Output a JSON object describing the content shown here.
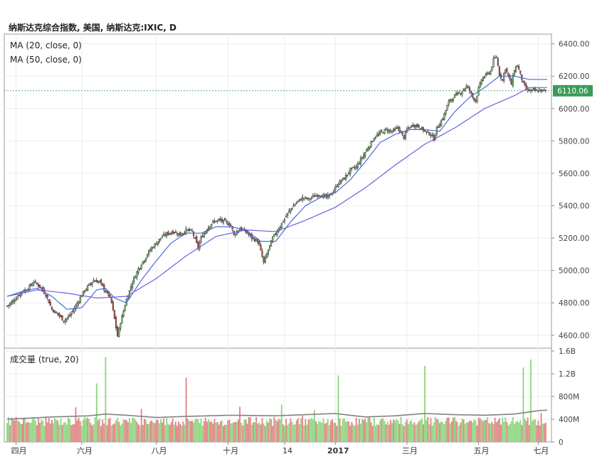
{
  "title": "纳斯达克综合指数, 美国, 纳斯达克:IXIC, D",
  "price_pane": {
    "ma20_label": "MA (20, close, 0)",
    "ma50_label": "MA (50, close, 0)",
    "last_price_label": "6110.06",
    "last_price": 6110.06
  },
  "volume_pane": {
    "label": "成交量 (true, 20)"
  },
  "colors": {
    "up": "#7cc96c",
    "down": "#c85151",
    "up_volume": "#8fd67f",
    "down_volume": "#e08585",
    "ma20": "#4a6bd8",
    "ma50": "#6d5de0",
    "volume_ma": "#808080",
    "last_price_line": "#2e8b57",
    "grid": "#ececec"
  },
  "chart_data": [
    {
      "type": "candlestick",
      "title": "纳斯达克综合指数, 美国, 纳斯达克:IXIC, D",
      "timeframe": "D",
      "x_tick_labels": [
        "四月",
        "六月",
        "八月",
        "十月",
        "14",
        "2017",
        "三月",
        "五月",
        "七月"
      ],
      "y_tick_labels": [
        "4600.00",
        "4800.00",
        "5000.00",
        "5200.00",
        "5400.00",
        "5600.00",
        "5800.00",
        "6000.00",
        "6200.00",
        "6400.00"
      ],
      "ylim": [
        4520,
        6460
      ],
      "grid": true,
      "series_names": [
        "MA (20, close, 0)",
        "MA (50, close, 0)"
      ],
      "last_value": 6110.06,
      "close_path": [
        [
          0,
          4780
        ],
        [
          6,
          4830
        ],
        [
          10,
          4870
        ],
        [
          14,
          4890
        ],
        [
          18,
          4930
        ],
        [
          22,
          4900
        ],
        [
          26,
          4850
        ],
        [
          30,
          4760
        ],
        [
          34,
          4730
        ],
        [
          38,
          4690
        ],
        [
          42,
          4720
        ],
        [
          46,
          4780
        ],
        [
          50,
          4850
        ],
        [
          54,
          4900
        ],
        [
          58,
          4940
        ],
        [
          62,
          4930
        ],
        [
          66,
          4870
        ],
        [
          68,
          4850
        ],
        [
          70,
          4800
        ],
        [
          72,
          4700
        ],
        [
          74,
          4594
        ],
        [
          76,
          4680
        ],
        [
          78,
          4750
        ],
        [
          80,
          4820
        ],
        [
          84,
          4930
        ],
        [
          88,
          5010
        ],
        [
          92,
          5070
        ],
        [
          96,
          5130
        ],
        [
          100,
          5170
        ],
        [
          104,
          5210
        ],
        [
          108,
          5230
        ],
        [
          112,
          5240
        ],
        [
          116,
          5220
        ],
        [
          120,
          5250
        ],
        [
          124,
          5240
        ],
        [
          126,
          5190
        ],
        [
          128,
          5140
        ],
        [
          130,
          5200
        ],
        [
          134,
          5260
        ],
        [
          138,
          5300
        ],
        [
          142,
          5310
        ],
        [
          146,
          5300
        ],
        [
          150,
          5280
        ],
        [
          152,
          5220
        ],
        [
          156,
          5260
        ],
        [
          160,
          5240
        ],
        [
          164,
          5200
        ],
        [
          168,
          5180
        ],
        [
          170,
          5120
        ],
        [
          172,
          5047
        ],
        [
          174,
          5100
        ],
        [
          176,
          5150
        ],
        [
          178,
          5200
        ],
        [
          182,
          5260
        ],
        [
          186,
          5320
        ],
        [
          190,
          5380
        ],
        [
          194,
          5420
        ],
        [
          198,
          5450
        ],
        [
          202,
          5440
        ],
        [
          206,
          5460
        ],
        [
          210,
          5470
        ],
        [
          214,
          5450
        ],
        [
          218,
          5480
        ],
        [
          222,
          5540
        ],
        [
          226,
          5570
        ],
        [
          230,
          5620
        ],
        [
          234,
          5640
        ],
        [
          238,
          5700
        ],
        [
          242,
          5760
        ],
        [
          246,
          5820
        ],
        [
          250,
          5850
        ],
        [
          254,
          5870
        ],
        [
          258,
          5860
        ],
        [
          262,
          5880
        ],
        [
          264,
          5850
        ],
        [
          266,
          5820
        ],
        [
          268,
          5870
        ],
        [
          272,
          5900
        ],
        [
          276,
          5890
        ],
        [
          280,
          5860
        ],
        [
          284,
          5840
        ],
        [
          286,
          5810
        ],
        [
          288,
          5880
        ],
        [
          292,
          5940
        ],
        [
          296,
          6040
        ],
        [
          300,
          6080
        ],
        [
          304,
          6100
        ],
        [
          306,
          6120
        ],
        [
          308,
          6140
        ],
        [
          310,
          6110
        ],
        [
          312,
          6070
        ],
        [
          314,
          6050
        ],
        [
          316,
          6120
        ],
        [
          318,
          6180
        ],
        [
          320,
          6200
        ],
        [
          324,
          6230
        ],
        [
          326,
          6300
        ],
        [
          328,
          6320
        ],
        [
          330,
          6210
        ],
        [
          332,
          6180
        ],
        [
          334,
          6250
        ],
        [
          336,
          6200
        ],
        [
          338,
          6150
        ],
        [
          340,
          6240
        ],
        [
          342,
          6270
        ],
        [
          344,
          6210
        ],
        [
          346,
          6150
        ],
        [
          348,
          6120
        ],
        [
          350,
          6110.06
        ]
      ],
      "ma20_path": [
        [
          0,
          4840
        ],
        [
          10,
          4870
        ],
        [
          20,
          4890
        ],
        [
          30,
          4840
        ],
        [
          40,
          4760
        ],
        [
          50,
          4770
        ],
        [
          60,
          4880
        ],
        [
          66,
          4890
        ],
        [
          72,
          4830
        ],
        [
          80,
          4800
        ],
        [
          90,
          4940
        ],
        [
          100,
          5060
        ],
        [
          110,
          5170
        ],
        [
          120,
          5230
        ],
        [
          130,
          5230
        ],
        [
          140,
          5270
        ],
        [
          150,
          5270
        ],
        [
          160,
          5250
        ],
        [
          170,
          5180
        ],
        [
          180,
          5180
        ],
        [
          190,
          5300
        ],
        [
          200,
          5400
        ],
        [
          210,
          5450
        ],
        [
          220,
          5480
        ],
        [
          230,
          5560
        ],
        [
          240,
          5670
        ],
        [
          250,
          5790
        ],
        [
          260,
          5840
        ],
        [
          270,
          5870
        ],
        [
          280,
          5870
        ],
        [
          290,
          5860
        ],
        [
          300,
          5980
        ],
        [
          310,
          6070
        ],
        [
          320,
          6130
        ],
        [
          330,
          6200
        ],
        [
          340,
          6200
        ],
        [
          350,
          6180
        ]
      ],
      "ma50_path": [
        [
          0,
          4840
        ],
        [
          20,
          4880
        ],
        [
          40,
          4860
        ],
        [
          60,
          4830
        ],
        [
          80,
          4840
        ],
        [
          100,
          4950
        ],
        [
          120,
          5090
        ],
        [
          140,
          5210
        ],
        [
          160,
          5250
        ],
        [
          180,
          5240
        ],
        [
          200,
          5310
        ],
        [
          220,
          5390
        ],
        [
          240,
          5510
        ],
        [
          260,
          5650
        ],
        [
          280,
          5780
        ],
        [
          300,
          5880
        ],
        [
          320,
          6000
        ],
        [
          340,
          6080
        ],
        [
          350,
          6130
        ]
      ]
    },
    {
      "type": "bar",
      "title": "成交量 (true, 20)",
      "y_tick_labels": [
        "0",
        "400M",
        "800M",
        "1.2B",
        "1.6B"
      ],
      "ylim": [
        0,
        1.65
      ],
      "unit": "billion shares",
      "grid": true,
      "spikes": [
        {
          "x": 6,
          "value": 0.44
        },
        {
          "x": 46,
          "value": 0.61
        },
        {
          "x": 60,
          "value": 1.03
        },
        {
          "x": 66,
          "value": 1.49
        },
        {
          "x": 90,
          "value": 0.58
        },
        {
          "x": 120,
          "value": 1.13
        },
        {
          "x": 156,
          "value": 0.62
        },
        {
          "x": 184,
          "value": 0.66
        },
        {
          "x": 198,
          "value": 0.46
        },
        {
          "x": 206,
          "value": 0.56
        },
        {
          "x": 222,
          "value": 1.17
        },
        {
          "x": 280,
          "value": 1.34
        },
        {
          "x": 346,
          "value": 1.31
        },
        {
          "x": 351,
          "value": 1.45
        },
        {
          "x": 358,
          "value": 0.51
        }
      ],
      "volume_ma_path": [
        [
          0,
          0.4
        ],
        [
          30,
          0.44
        ],
        [
          55,
          0.46
        ],
        [
          66,
          0.49
        ],
        [
          80,
          0.47
        ],
        [
          100,
          0.43
        ],
        [
          120,
          0.45
        ],
        [
          150,
          0.47
        ],
        [
          180,
          0.46
        ],
        [
          200,
          0.48
        ],
        [
          220,
          0.5
        ],
        [
          240,
          0.44
        ],
        [
          260,
          0.46
        ],
        [
          280,
          0.5
        ],
        [
          300,
          0.48
        ],
        [
          320,
          0.47
        ],
        [
          340,
          0.49
        ],
        [
          356,
          0.55
        ],
        [
          362,
          0.56
        ]
      ]
    }
  ]
}
